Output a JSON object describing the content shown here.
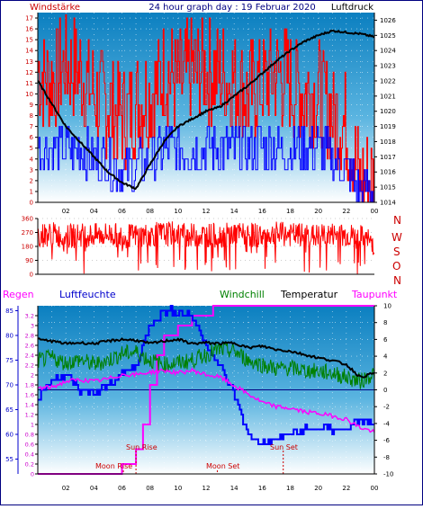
{
  "header": {
    "left_label": "Windstärke",
    "title": "24 hour graph day : 19 Februar 2020",
    "right_label": "Luftdruck"
  },
  "wind_axis_ticks": [
    "0",
    "1",
    "2",
    "3",
    "4",
    "5",
    "6",
    "7",
    "8",
    "9",
    "10",
    "11",
    "12",
    "13",
    "14",
    "15",
    "16",
    "17"
  ],
  "pressure_axis_ticks": [
    "1014",
    "1015",
    "1016",
    "1017",
    "1018",
    "1019",
    "1020",
    "1021",
    "1022",
    "1023",
    "1024",
    "1025",
    "1026"
  ],
  "hour_ticks": [
    "02",
    "04",
    "06",
    "08",
    "10",
    "12",
    "14",
    "16",
    "18",
    "20",
    "22",
    "00"
  ],
  "direction_axis_ticks": [
    "0",
    "90",
    "180",
    "270",
    "360"
  ],
  "compass": [
    "N",
    "W",
    "S",
    "O",
    "N"
  ],
  "bottom_header": {
    "regen": "Regen",
    "luftfeuchte": "Luftfeuchte",
    "windchill": "Windchill",
    "temperatur": "Temperatur",
    "taupunkt": "Taupunkt"
  },
  "rain_axis_ticks": [
    "0",
    "0.2",
    "0.4",
    "0.6",
    "0.8",
    "1",
    "1.2",
    "1.4",
    "1.6",
    "1.8",
    "2",
    "2.2",
    "2.4",
    "2.6",
    "2.8",
    "3",
    "3.2"
  ],
  "humidity_axis_ticks": [
    "55",
    "60",
    "65",
    "70",
    "75",
    "80",
    "85"
  ],
  "temperature_axis_ticks": [
    "-10",
    "-8",
    "-6",
    "-4",
    "-2",
    "0",
    "2",
    "4",
    "6",
    "8",
    "10"
  ],
  "astro": {
    "moon_rise": "Moon Rise",
    "sun_rise": "Sun Rise",
    "moon_set": "Moon Set",
    "sun_set": "Sun Set"
  },
  "colors": {
    "wind_gust": "#ff0000",
    "wind_avg": "#0000ff",
    "pressure": "#000000",
    "direction": "#ff0000",
    "rain": "#ff00ff",
    "humidity": "#0000ff",
    "windchill": "#008000",
    "temperature": "#000000",
    "dewpoint": "#ff00ff",
    "axis_label_red": "#cc0000"
  },
  "chart_data": [
    {
      "type": "line",
      "title": "24 hour graph day : 19 Februar 2020",
      "x_range_hours": [
        0,
        24
      ],
      "ylim_left": [
        0,
        17.5
      ],
      "ylim_right": [
        1014,
        1026.5
      ],
      "grid": true,
      "series": [
        {
          "name": "Windstärke",
          "axis": "left",
          "points": [
            [
              0,
              12
            ],
            [
              1,
              11
            ],
            [
              2,
              13
            ],
            [
              3,
              12
            ],
            [
              4,
              10
            ],
            [
              5,
              9
            ],
            [
              6,
              8
            ],
            [
              7,
              9
            ],
            [
              8,
              10
            ],
            [
              9,
              12
            ],
            [
              10,
              11
            ],
            [
              11,
              12
            ],
            [
              12,
              12
            ],
            [
              13,
              12
            ],
            [
              14,
              11
            ],
            [
              15,
              10
            ],
            [
              16,
              11
            ],
            [
              17,
              12
            ],
            [
              18,
              11
            ],
            [
              19,
              10
            ],
            [
              20,
              10
            ],
            [
              21,
              8
            ],
            [
              22,
              7
            ],
            [
              23,
              2
            ],
            [
              24,
              2
            ]
          ]
        },
        {
          "axis": "left",
          "points": [
            [
              0,
              5
            ],
            [
              1,
              5
            ],
            [
              2,
              5
            ],
            [
              3,
              5
            ],
            [
              4,
              4
            ],
            [
              5,
              4
            ],
            [
              6,
              3
            ],
            [
              7,
              3
            ],
            [
              8,
              4
            ],
            [
              9,
              5
            ],
            [
              10,
              5
            ],
            [
              11,
              5
            ],
            [
              12,
              5
            ],
            [
              13,
              5
            ],
            [
              14,
              5
            ],
            [
              15,
              5
            ],
            [
              16,
              5
            ],
            [
              17,
              5
            ],
            [
              18,
              5
            ],
            [
              19,
              5
            ],
            [
              20,
              5
            ],
            [
              21,
              4
            ],
            [
              22,
              3
            ],
            [
              23,
              1
            ],
            [
              24,
              1
            ]
          ]
        },
        {
          "name": "Luftdruck",
          "axis": "right",
          "points": [
            [
              0,
              1022
            ],
            [
              1,
              1020.5
            ],
            [
              2,
              1019
            ],
            [
              3,
              1018
            ],
            [
              4,
              1017
            ],
            [
              5,
              1016
            ],
            [
              6,
              1015.3
            ],
            [
              7,
              1014.9
            ],
            [
              8,
              1016.5
            ],
            [
              9,
              1018
            ],
            [
              10,
              1019
            ],
            [
              11,
              1019.5
            ],
            [
              12,
              1020
            ],
            [
              13,
              1020.3
            ],
            [
              14,
              1021
            ],
            [
              15,
              1021.7
            ],
            [
              16,
              1022.5
            ],
            [
              17,
              1023.3
            ],
            [
              18,
              1024
            ],
            [
              19,
              1024.6
            ],
            [
              20,
              1025
            ],
            [
              21,
              1025.3
            ],
            [
              22,
              1025.2
            ],
            [
              23,
              1025.1
            ],
            [
              24,
              1024.9
            ]
          ]
        }
      ]
    },
    {
      "type": "line",
      "x_range_hours": [
        0,
        24
      ],
      "ylim": [
        0,
        360
      ],
      "series": [
        {
          "points": [
            [
              0,
              250
            ],
            [
              1,
              260
            ],
            [
              2,
              240
            ],
            [
              3,
              255
            ],
            [
              4,
              250
            ],
            [
              5,
              260
            ],
            [
              6,
              245
            ],
            [
              7,
              250
            ],
            [
              8,
              255
            ],
            [
              9,
              260
            ],
            [
              10,
              265
            ],
            [
              11,
              250
            ],
            [
              12,
              255
            ],
            [
              13,
              250
            ],
            [
              14,
              260
            ],
            [
              15,
              255
            ],
            [
              16,
              250
            ],
            [
              17,
              260
            ],
            [
              18,
              255
            ],
            [
              19,
              250
            ],
            [
              20,
              245
            ],
            [
              21,
              255
            ],
            [
              22,
              250
            ],
            [
              23,
              240
            ],
            [
              24,
              200
            ]
          ]
        }
      ]
    },
    {
      "type": "line",
      "x_range_hours": [
        0,
        24
      ],
      "ylim_rain": [
        0,
        3.4
      ],
      "ylim_humidity": [
        52,
        86
      ],
      "ylim_temperature": [
        -10,
        10
      ],
      "series": [
        {
          "name": "Regen",
          "axis": "rain",
          "points": [
            [
              0,
              0
            ],
            [
              3,
              0
            ],
            [
              5,
              0
            ],
            [
              6,
              0.2
            ],
            [
              7,
              0.5
            ],
            [
              7.5,
              1
            ],
            [
              8,
              1.8
            ],
            [
              8.5,
              2.4
            ],
            [
              9,
              2.8
            ],
            [
              10,
              3.0
            ],
            [
              11,
              3.2
            ],
            [
              12,
              3.2
            ],
            [
              12.5,
              3.4
            ],
            [
              24,
              3.4
            ]
          ]
        },
        {
          "name": "Luftfeuchte",
          "axis": "humidity",
          "points": [
            [
              0,
              67
            ],
            [
              1,
              71
            ],
            [
              2,
              72
            ],
            [
              3,
              69
            ],
            [
              4,
              68
            ],
            [
              5,
              70
            ],
            [
              6,
              72
            ],
            [
              7,
              74
            ],
            [
              8,
              82
            ],
            [
              9,
              85
            ],
            [
              10,
              85
            ],
            [
              11,
              84
            ],
            [
              12,
              78
            ],
            [
              13,
              74
            ],
            [
              14,
              68
            ],
            [
              15,
              60
            ],
            [
              16,
              58
            ],
            [
              17,
              59
            ],
            [
              18,
              60
            ],
            [
              19,
              61
            ],
            [
              20,
              61
            ],
            [
              21,
              61
            ],
            [
              22,
              61
            ],
            [
              23,
              63
            ],
            [
              24,
              62
            ]
          ]
        },
        {
          "name": "Windchill",
          "axis": "temperature",
          "points": [
            [
              0,
              3.5
            ],
            [
              1,
              3.8
            ],
            [
              2,
              3.2
            ],
            [
              3,
              3.6
            ],
            [
              4,
              3.0
            ],
            [
              5,
              3.5
            ],
            [
              6,
              4.3
            ],
            [
              7,
              4.5
            ],
            [
              8,
              3.5
            ],
            [
              9,
              3.0
            ],
            [
              10,
              3.2
            ],
            [
              11,
              3.5
            ],
            [
              12,
              4.2
            ],
            [
              13,
              4.8
            ],
            [
              14,
              4.6
            ],
            [
              15,
              3.5
            ],
            [
              16,
              3.0
            ],
            [
              17,
              2.5
            ],
            [
              18,
              2.6
            ],
            [
              19,
              2.3
            ],
            [
              20,
              2.2
            ],
            [
              21,
              2.0
            ],
            [
              22,
              1.5
            ],
            [
              23,
              1.0
            ],
            [
              24,
              2.0
            ]
          ]
        },
        {
          "name": "Temperatur",
          "axis": "temperature",
          "points": [
            [
              0,
              6
            ],
            [
              1,
              5.8
            ],
            [
              2,
              5.5
            ],
            [
              3,
              5.6
            ],
            [
              4,
              5.5
            ],
            [
              5,
              5.8
            ],
            [
              6,
              6.0
            ],
            [
              7,
              5.9
            ],
            [
              8,
              5.5
            ],
            [
              9,
              5.8
            ],
            [
              10,
              6.0
            ],
            [
              11,
              5.5
            ],
            [
              12,
              5.6
            ],
            [
              13,
              5.5
            ],
            [
              14,
              5.6
            ],
            [
              15,
              5.0
            ],
            [
              16,
              5.2
            ],
            [
              17,
              4.8
            ],
            [
              18,
              4.6
            ],
            [
              19,
              4.2
            ],
            [
              20,
              3.8
            ],
            [
              21,
              3.5
            ],
            [
              22,
              3.0
            ],
            [
              23,
              1.5
            ],
            [
              24,
              2.0
            ]
          ]
        },
        {
          "name": "Taupunkt",
          "axis": "temperature",
          "points": [
            [
              0,
              0.2
            ],
            [
              1,
              0.3
            ],
            [
              2,
              1.0
            ],
            [
              3,
              1.2
            ],
            [
              4,
              1.0
            ],
            [
              5,
              1.3
            ],
            [
              6,
              1.8
            ],
            [
              7,
              1.8
            ],
            [
              8,
              2.1
            ],
            [
              9,
              2.3
            ],
            [
              10,
              2.0
            ],
            [
              11,
              2.3
            ],
            [
              12,
              1.8
            ],
            [
              13,
              1.5
            ],
            [
              14,
              0.5
            ],
            [
              15,
              -0.5
            ],
            [
              16,
              -1.5
            ],
            [
              17,
              -2.0
            ],
            [
              18,
              -2.2
            ],
            [
              19,
              -2.6
            ],
            [
              20,
              -2.8
            ],
            [
              21,
              -3.1
            ],
            [
              22,
              -3.5
            ],
            [
              23,
              -4.5
            ],
            [
              24,
              -5.0
            ]
          ]
        }
      ],
      "astro_hours": {
        "moon_rise": 6.1,
        "sun_rise": 7.0,
        "moon_set": 12.8,
        "sun_set": 17.5
      }
    }
  ]
}
